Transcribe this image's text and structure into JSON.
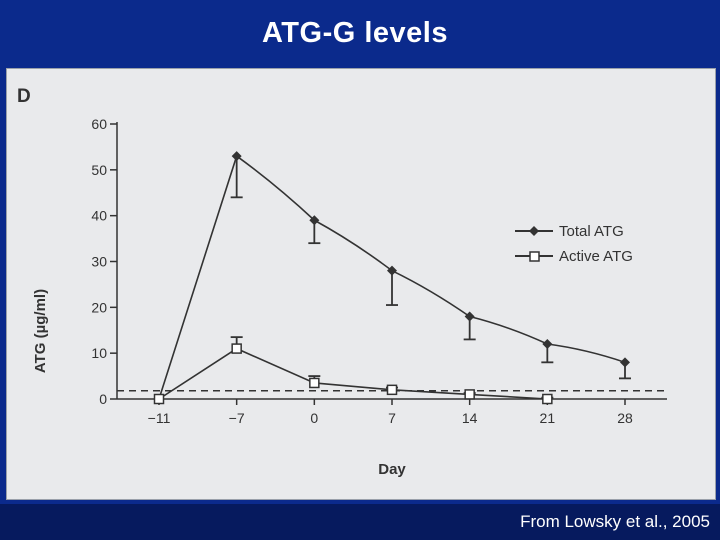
{
  "slide": {
    "title": "ATG-G levels",
    "credit": "From Lowsky et al., 2005"
  },
  "colors": {
    "slide_background": "#0b2a8c",
    "panel_background": "#e9eaec",
    "ink": "#333333"
  },
  "chart_data": {
    "type": "line",
    "panel_label": "D",
    "title": "",
    "xlabel": "Day",
    "ylabel": "ATG (µg/ml)",
    "x": [
      -11,
      -7,
      0,
      7,
      14,
      21,
      28
    ],
    "x_tick_labels": [
      "−11",
      "−7",
      "0",
      "7",
      "14",
      "21",
      "28"
    ],
    "y_ticks": [
      0,
      10,
      20,
      30,
      40,
      50,
      60
    ],
    "ylim": [
      0,
      60
    ],
    "grid": false,
    "legend_position": "right",
    "reference_line": {
      "y": 1.8,
      "style": "dashed"
    },
    "series": [
      {
        "name": "Total ATG",
        "marker": "filled-diamond",
        "values": [
          0,
          53,
          39,
          28,
          18,
          12,
          8
        ],
        "error": [
          0,
          9,
          5,
          7.5,
          5,
          4,
          3.5
        ],
        "error_direction": "down"
      },
      {
        "name": "Active ATG",
        "marker": "open-square",
        "values": [
          0,
          11,
          3.5,
          2,
          1,
          0,
          null
        ],
        "error": [
          0,
          2.5,
          1.5,
          0.5,
          0.3,
          0.3,
          null
        ],
        "error_direction": "up"
      }
    ]
  }
}
